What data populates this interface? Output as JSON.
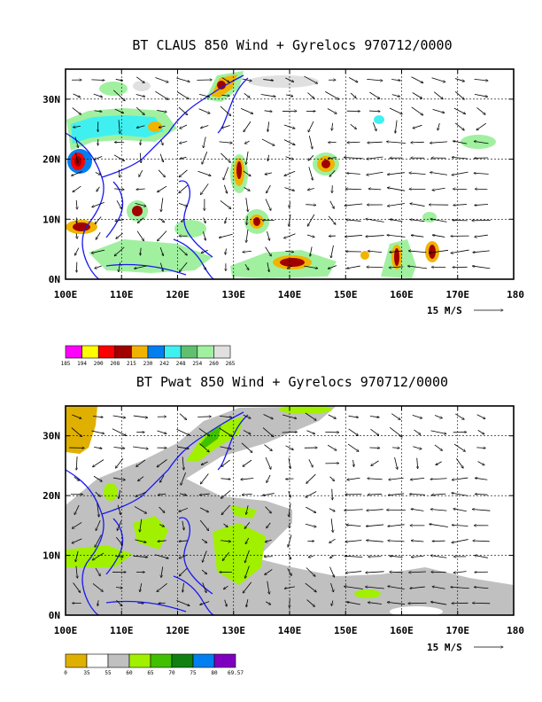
{
  "panels": [
    {
      "id": "claus",
      "title": "BT CLAUS 850 Wind + Gyrelocs 970712/0000",
      "legend_values": [
        "185",
        "194",
        "200",
        "208",
        "215",
        "230",
        "242",
        "248",
        "254",
        "260",
        "265"
      ],
      "legend_colors": [
        "#ff00ff",
        "#ffff00",
        "#ff0000",
        "#a00000",
        "#f0b400",
        "#0080f0",
        "#40f0f0",
        "#60c070",
        "#a0f0a0",
        "#e0e0e0"
      ]
    },
    {
      "id": "pwat",
      "title": "BT Pwat 850 Wind + Gyrelocs 970712/0000",
      "legend_values": [
        "0",
        "35",
        "55",
        "60",
        "65",
        "70",
        "75",
        "80",
        "69.57"
      ],
      "legend_colors": [
        "#e0b000",
        "#ffffff",
        "#c0c0c0",
        "#a0f000",
        "#40c000",
        "#108010",
        "#0080f0",
        "#8000c0"
      ]
    }
  ],
  "axes": {
    "x_ticks": [
      "100E",
      "110E",
      "120E",
      "130E",
      "140E",
      "150E",
      "160E",
      "170E",
      "180"
    ],
    "y_ticks": [
      "0N",
      "10N",
      "20N",
      "30N"
    ]
  },
  "vector_key": "15 M/S"
}
